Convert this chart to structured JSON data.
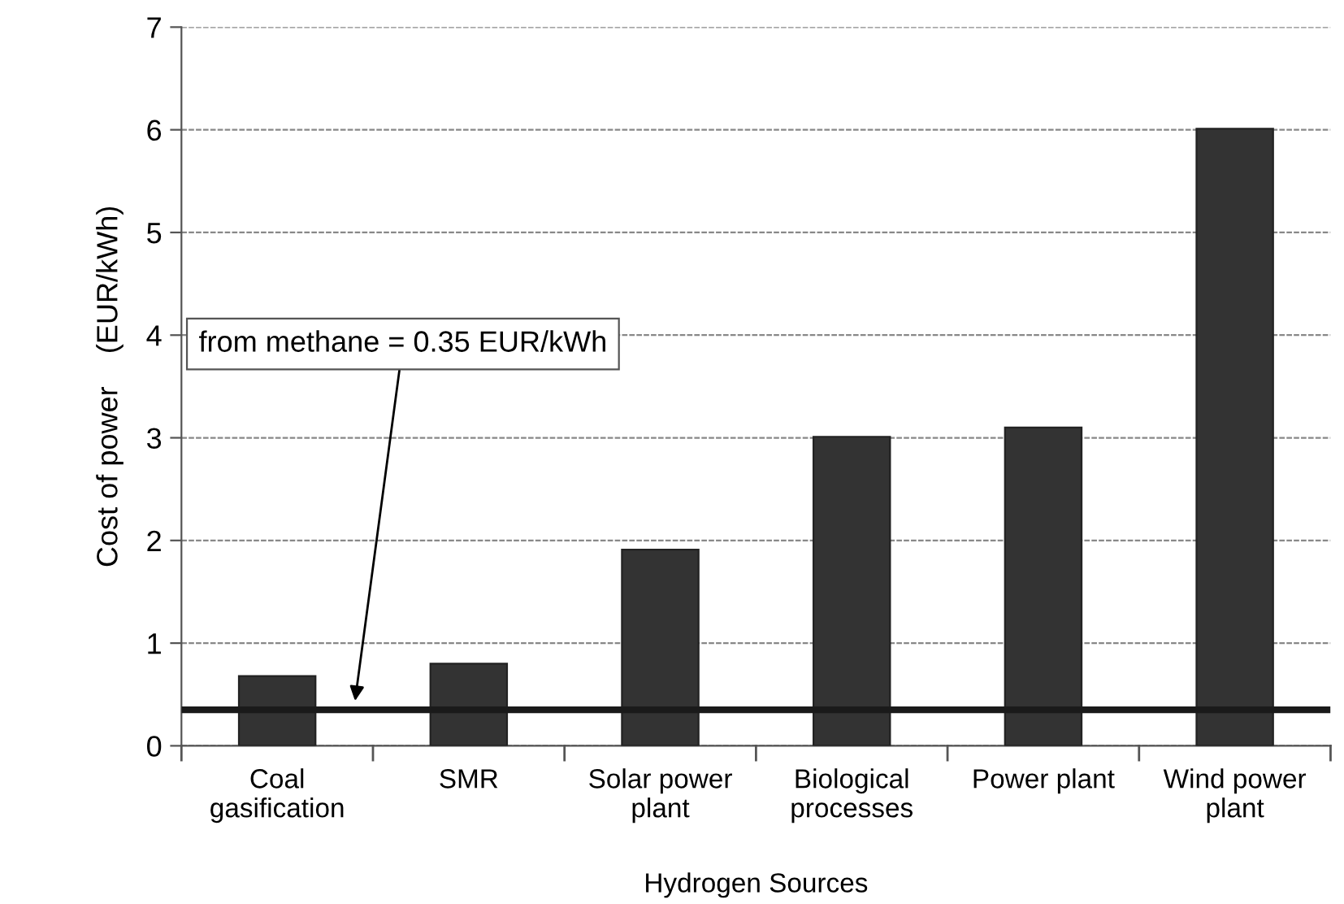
{
  "chart_data": {
    "type": "bar",
    "xlabel": "Hydrogen Sources",
    "ylabel": "Cost of power    (EUR/kWh)",
    "categories": [
      "Coal\ngasification",
      "SMR",
      "Solar power\nplant",
      "Biological\nprocesses",
      "Power plant",
      "Wind power\nplant"
    ],
    "values": [
      0.68,
      0.8,
      1.91,
      3.01,
      3.1,
      6.01
    ],
    "color": "#333333",
    "ylim": [
      0,
      7
    ],
    "yticks": [
      0,
      1,
      2,
      3,
      4,
      5,
      6,
      7
    ],
    "grid": "y",
    "ref_lines": [
      {
        "axis": "y",
        "value": 0.35,
        "label": "from methane = 0.35 EUR/kWh",
        "color": "#1a1a1a",
        "line_style": "solid"
      }
    ]
  }
}
